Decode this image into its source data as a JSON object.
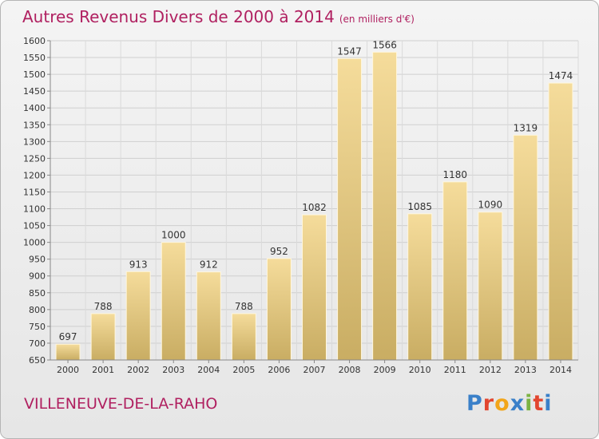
{
  "chart_data": {
    "type": "bar",
    "title": "Autres Revenus Divers de 2000 à 2014",
    "unit_label": "(en milliers d'€)",
    "categories": [
      "2000",
      "2001",
      "2002",
      "2003",
      "2004",
      "2005",
      "2006",
      "2007",
      "2008",
      "2009",
      "2010",
      "2011",
      "2012",
      "2013",
      "2014"
    ],
    "values": [
      697,
      788,
      913,
      1000,
      912,
      788,
      952,
      1082,
      1547,
      1566,
      1085,
      1180,
      1090,
      1319,
      1474
    ],
    "ylim": [
      650,
      1600
    ],
    "yticks": [
      650,
      700,
      750,
      800,
      850,
      900,
      950,
      1000,
      1050,
      1100,
      1150,
      1200,
      1250,
      1300,
      1350,
      1400,
      1450,
      1500,
      1550,
      1600
    ],
    "grid": true,
    "colors": {
      "bar_light": "#f5dc9b",
      "bar_dark": "#c9ad63",
      "title": "#b02060"
    }
  },
  "footer": {
    "town": "VILLENEUVE-DE-LA-RAHO",
    "brand": "Proxiti",
    "brand_colors": [
      "#3a80c9",
      "#e2462f",
      "#f2a51a",
      "#3a80c9",
      "#7cb342",
      "#e2462f",
      "#3a80c9"
    ]
  }
}
